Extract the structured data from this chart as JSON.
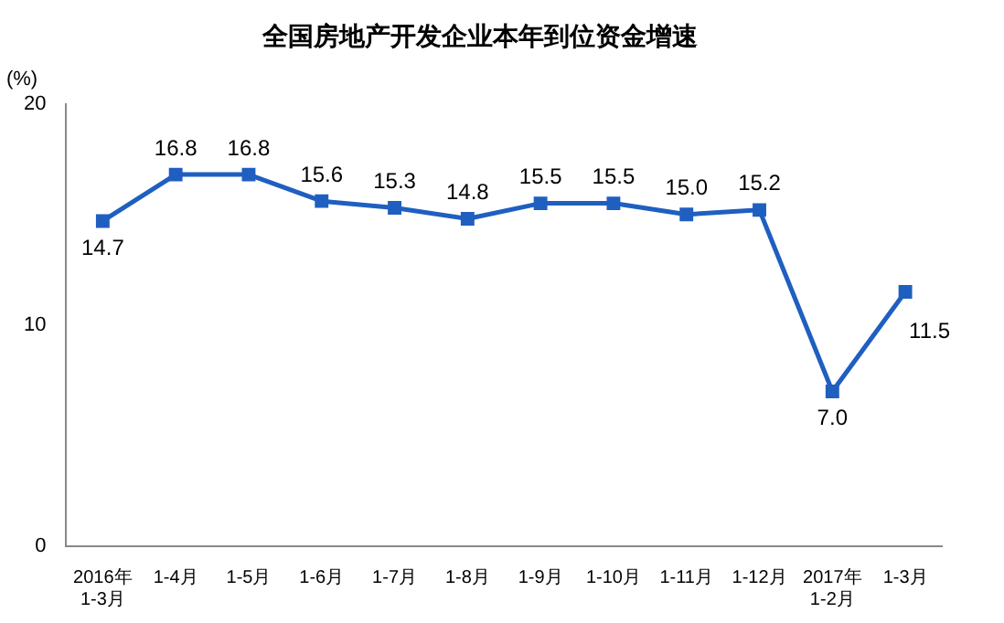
{
  "chart_data": {
    "type": "line",
    "title": "全国房地产开发企业本年到位资金增速",
    "ylabel": "(%)",
    "categories": [
      "2016年 1-3月",
      "1-4月",
      "1-5月",
      "1-6月",
      "1-7月",
      "1-8月",
      "1-9月",
      "1-10月",
      "1-11月",
      "1-12月",
      "2017年 1-2月",
      "1-3月"
    ],
    "series": [
      {
        "color": "#1f5fc0",
        "values": [
          14.7,
          16.8,
          16.8,
          15.6,
          15.3,
          14.8,
          15.5,
          15.5,
          15.0,
          15.2,
          7.0,
          11.5
        ],
        "value_labels": [
          "14.7",
          "16.8",
          "16.8",
          "15.6",
          "15.3",
          "14.8",
          "15.5",
          "15.5",
          "15.0",
          "15.2",
          "7.0",
          "11.5"
        ]
      }
    ],
    "ylim": [
      0,
      20
    ],
    "yticks": [
      0,
      10,
      20
    ],
    "grid": false,
    "legend": false,
    "marker": "square",
    "line_style": "solid"
  }
}
